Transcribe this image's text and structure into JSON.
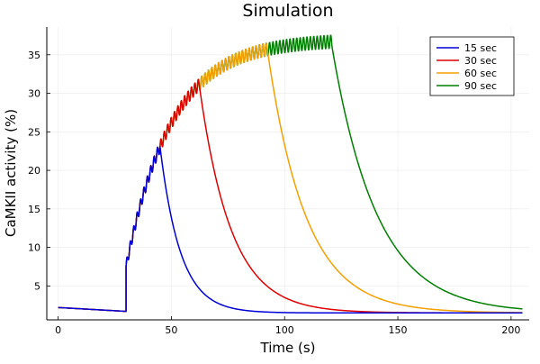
{
  "chart_data": {
    "type": "line",
    "title": "Simulation",
    "xlabel": "Time (s)",
    "ylabel": "CaMKII activity (%)",
    "xlim": [
      -5,
      208
    ],
    "ylim": [
      0.6,
      38.6
    ],
    "xticks": [
      0,
      50,
      100,
      150,
      200
    ],
    "yticks": [
      5,
      10,
      15,
      20,
      25,
      30,
      35
    ],
    "grid": true,
    "legend_position": "top-right",
    "stimulus_start": 30,
    "rise_params": {
      "baseline_start": 2.2,
      "baseline_end": 1.7,
      "jump_to": 7.5,
      "plateau": 37.0,
      "tau": 20,
      "oscillation_amplitude": 0.9,
      "oscillation_period": 1.5
    },
    "series": [
      {
        "name": "15 sec",
        "color": "#0000d8",
        "stimulus_end": 45,
        "decay_tau": 9,
        "final": 1.5
      },
      {
        "name": "30 sec",
        "color": "#e00000",
        "stimulus_end": 62,
        "decay_tau": 14,
        "final": 1.5
      },
      {
        "name": "60 sec",
        "color": "#f5a000",
        "stimulus_end": 92,
        "decay_tau": 17,
        "final": 1.5
      },
      {
        "name": "90 sec",
        "color": "#008000",
        "stimulus_end": 121,
        "decay_tau": 20,
        "final": 1.5
      }
    ],
    "x_end": 205
  }
}
